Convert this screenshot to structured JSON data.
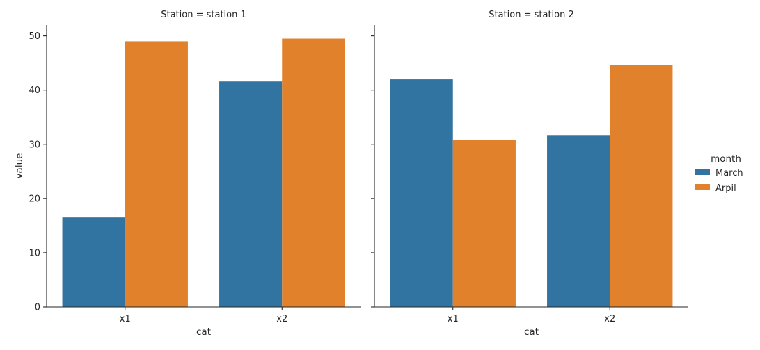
{
  "chart_data": {
    "type": "bar",
    "facet_variable": "Station",
    "hue_variable": "month",
    "xlabel": "cat",
    "ylabel": "value",
    "ylim": [
      0,
      52
    ],
    "yticks": [
      0,
      10,
      20,
      30,
      40,
      50
    ],
    "categories": [
      "x1",
      "x2"
    ],
    "legend": {
      "title": "month",
      "position": "right",
      "entries": [
        {
          "name": "March",
          "color": "#3274a1"
        },
        {
          "name": "Arpil",
          "color": "#e1812c"
        }
      ]
    },
    "panels": [
      {
        "title": "Station = station 1",
        "series": [
          {
            "name": "March",
            "values": [
              16.5,
              41.6
            ]
          },
          {
            "name": "Arpil",
            "values": [
              49.0,
              49.5
            ]
          }
        ]
      },
      {
        "title": "Station = station 2",
        "series": [
          {
            "name": "March",
            "values": [
              42.0,
              31.6
            ]
          },
          {
            "name": "Arpil",
            "values": [
              30.8,
              44.6
            ]
          }
        ]
      }
    ]
  }
}
